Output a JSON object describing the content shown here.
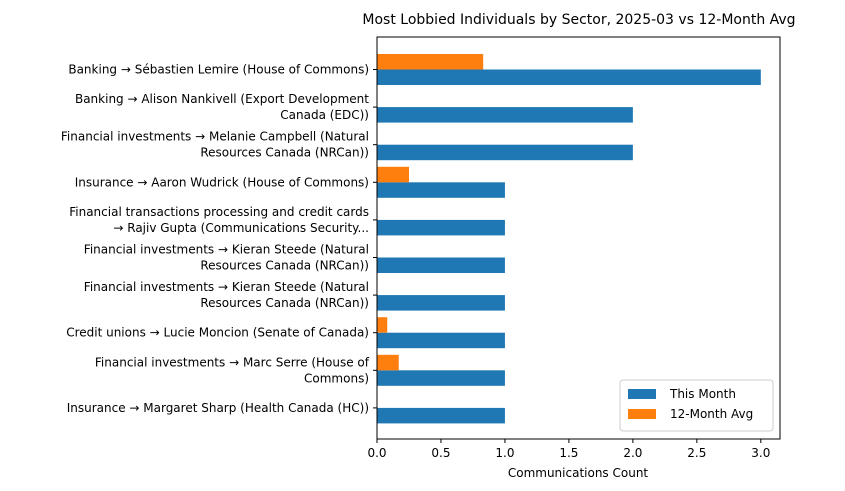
{
  "chart_data": {
    "type": "bar",
    "orientation": "horizontal",
    "title": "Most Lobbied Individuals by Sector, 2025-03 vs 12-Month Avg",
    "xlabel": "Communications Count",
    "ylabel": "",
    "xlim": [
      0,
      3.15
    ],
    "xticks": [
      "0.0",
      "0.5",
      "1.0",
      "1.5",
      "2.0",
      "2.5",
      "3.0"
    ],
    "grid": false,
    "legend_position": "lower-right",
    "categories": [
      [
        "Banking → Sébastien Lemire (House of Commons)"
      ],
      [
        "Banking → Alison Nankivell (Export Development",
        "Canada (EDC))"
      ],
      [
        "Financial investments → Melanie Campbell (Natural",
        "Resources Canada (NRCan))"
      ],
      [
        "Insurance → Aaron Wudrick (House of Commons)"
      ],
      [
        "Financial transactions processing and credit cards",
        "→ Rajiv Gupta (Communications Security..."
      ],
      [
        "Financial investments → Kieran Steede (Natural",
        "Resources Canada (NRCan))"
      ],
      [
        "Financial investments → Kieran Steede (Natural",
        "Resources Canada (NRCan))"
      ],
      [
        "Credit unions → Lucie Moncion (Senate of Canada)"
      ],
      [
        "Financial investments → Marc Serre (House of",
        "Commons)"
      ],
      [
        "Insurance → Margaret Sharp (Health Canada (HC))"
      ]
    ],
    "series": [
      {
        "name": "This Month",
        "color": "#1f77b4",
        "values": [
          3,
          2,
          2,
          1,
          1,
          1,
          1,
          1,
          1,
          1
        ]
      },
      {
        "name": "12-Month Avg",
        "color": "#ff7f0e",
        "values": [
          0.83,
          0,
          0,
          0.25,
          0,
          0,
          0,
          0.08,
          0.17,
          0
        ]
      }
    ]
  }
}
